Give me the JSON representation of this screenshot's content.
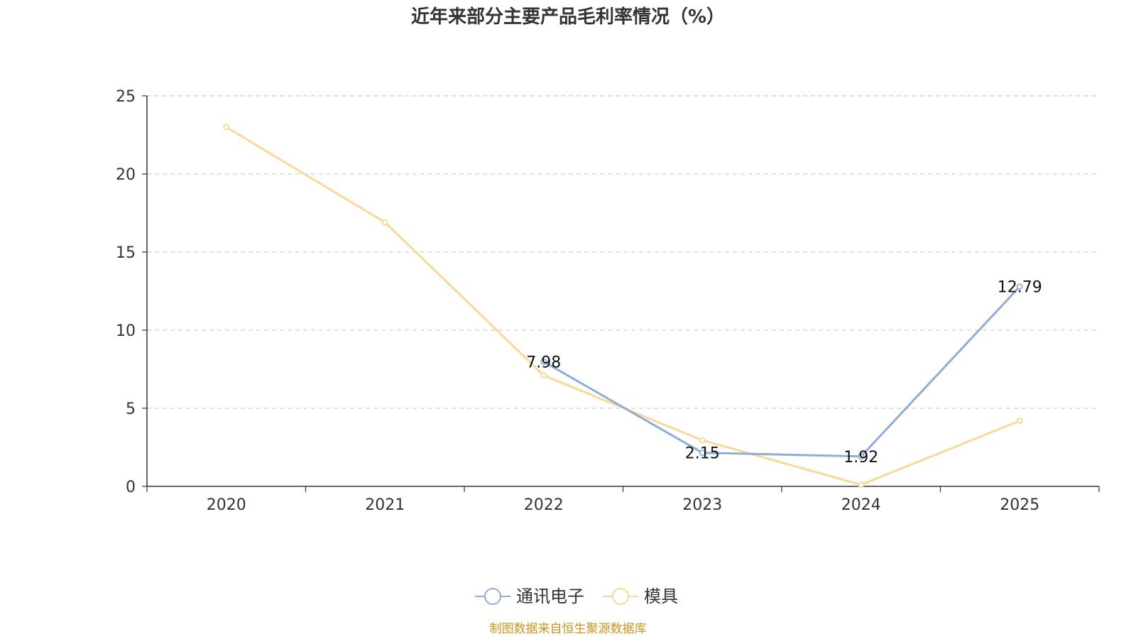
{
  "chart_data": {
    "type": "line",
    "title": "近年来部分主要产品毛利率情况（%）",
    "xlabel": "",
    "ylabel": "",
    "categories": [
      "2020",
      "2021",
      "2022",
      "2023",
      "2024",
      "2025"
    ],
    "ylim": [
      0,
      25
    ],
    "yticks": [
      0,
      5,
      10,
      15,
      20,
      25
    ],
    "grid": true,
    "legend_position": "bottom-center",
    "series": [
      {
        "name": "通讯电子",
        "color": "#8eaed8",
        "values": [
          null,
          null,
          7.98,
          2.15,
          1.92,
          12.79
        ],
        "labels": [
          null,
          null,
          "7.98",
          "2.15",
          "1.92",
          "12.79"
        ]
      },
      {
        "name": "模具",
        "color": "#fad896",
        "values": [
          23.0,
          16.9,
          7.1,
          2.95,
          0.1,
          4.2
        ],
        "labels": [
          null,
          null,
          null,
          null,
          null,
          null
        ]
      }
    ],
    "source": "制图数据来自恒生聚源数据库",
    "source_color": "#c8941e"
  }
}
